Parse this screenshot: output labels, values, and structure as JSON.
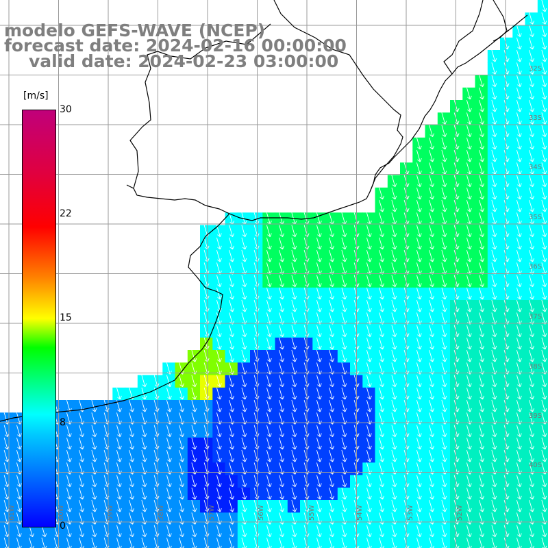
{
  "title": {
    "model": "modelo GEFS-WAVE (NCEP)",
    "forecast": "forecast date: 2024-02-16 00:00:00",
    "valid": "valid date: 2024-02-23 03:00:00"
  },
  "colorbar": {
    "unit": "[m/s]",
    "ticks": [
      "30",
      "22",
      "15",
      "8",
      "0"
    ],
    "tick_values": [
      30,
      22,
      15,
      8,
      0
    ],
    "range": [
      0,
      30
    ],
    "stops": [
      "#0000ff",
      "#00c8ff",
      "#00ffff",
      "#00ff00",
      "#ffff00",
      "#ff8000",
      "#ff0000",
      "#c0007a"
    ]
  },
  "lon_labels": [
    "61W",
    "60W",
    "59W",
    "58W",
    "57W",
    "56W",
    "55W",
    "54W",
    "53W",
    "52W"
  ],
  "lat_labels": [
    "32S",
    "33S",
    "34S",
    "35S",
    "36S",
    "37S",
    "38S",
    "39S",
    "40S"
  ],
  "colors": {
    "land": "#ffffff",
    "grid": "#9a9a9a",
    "coast": "#000000",
    "arrow": "#ffffff",
    "title": "#7f7f7f"
  }
}
